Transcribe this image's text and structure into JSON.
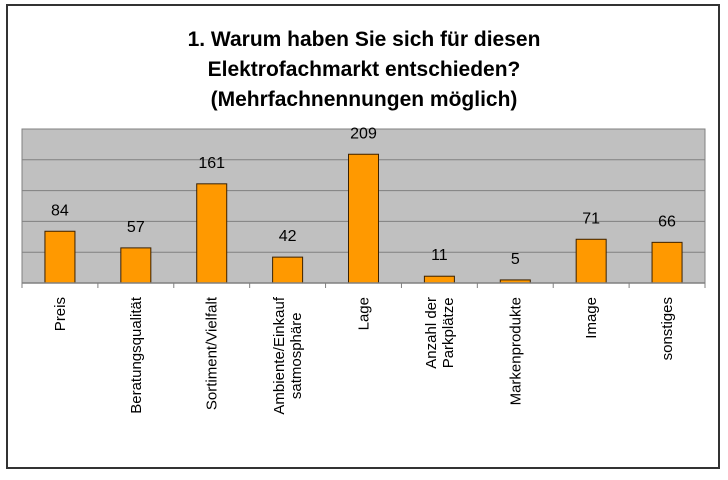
{
  "chart_data": {
    "type": "bar",
    "title_lines": [
      "1. Warum haben Sie sich für diesen",
      "Elektrofachmarkt entschieden?",
      "(Mehrfachnennungen möglich)"
    ],
    "categories": [
      [
        "Preis"
      ],
      [
        "Beratungsqualität"
      ],
      [
        "Sortiment/Vielfalt"
      ],
      [
        "Ambiente/Einkauf",
        "satmosphäre"
      ],
      [
        "Lage"
      ],
      [
        "Anzahl der",
        "Parkplätze"
      ],
      [
        "Markenprodukte"
      ],
      [
        "Image"
      ],
      [
        "sonstiges"
      ]
    ],
    "values": [
      84,
      57,
      161,
      42,
      209,
      11,
      5,
      71,
      66
    ],
    "ylim": [
      0,
      250
    ],
    "grid_step": 50,
    "grid": true,
    "data_labels": true,
    "legend": "none",
    "colors": {
      "bar": "#FF9900",
      "bar_border": "#3a2000",
      "plot_bg": "#C0C0C0",
      "grid": "#808080"
    }
  }
}
